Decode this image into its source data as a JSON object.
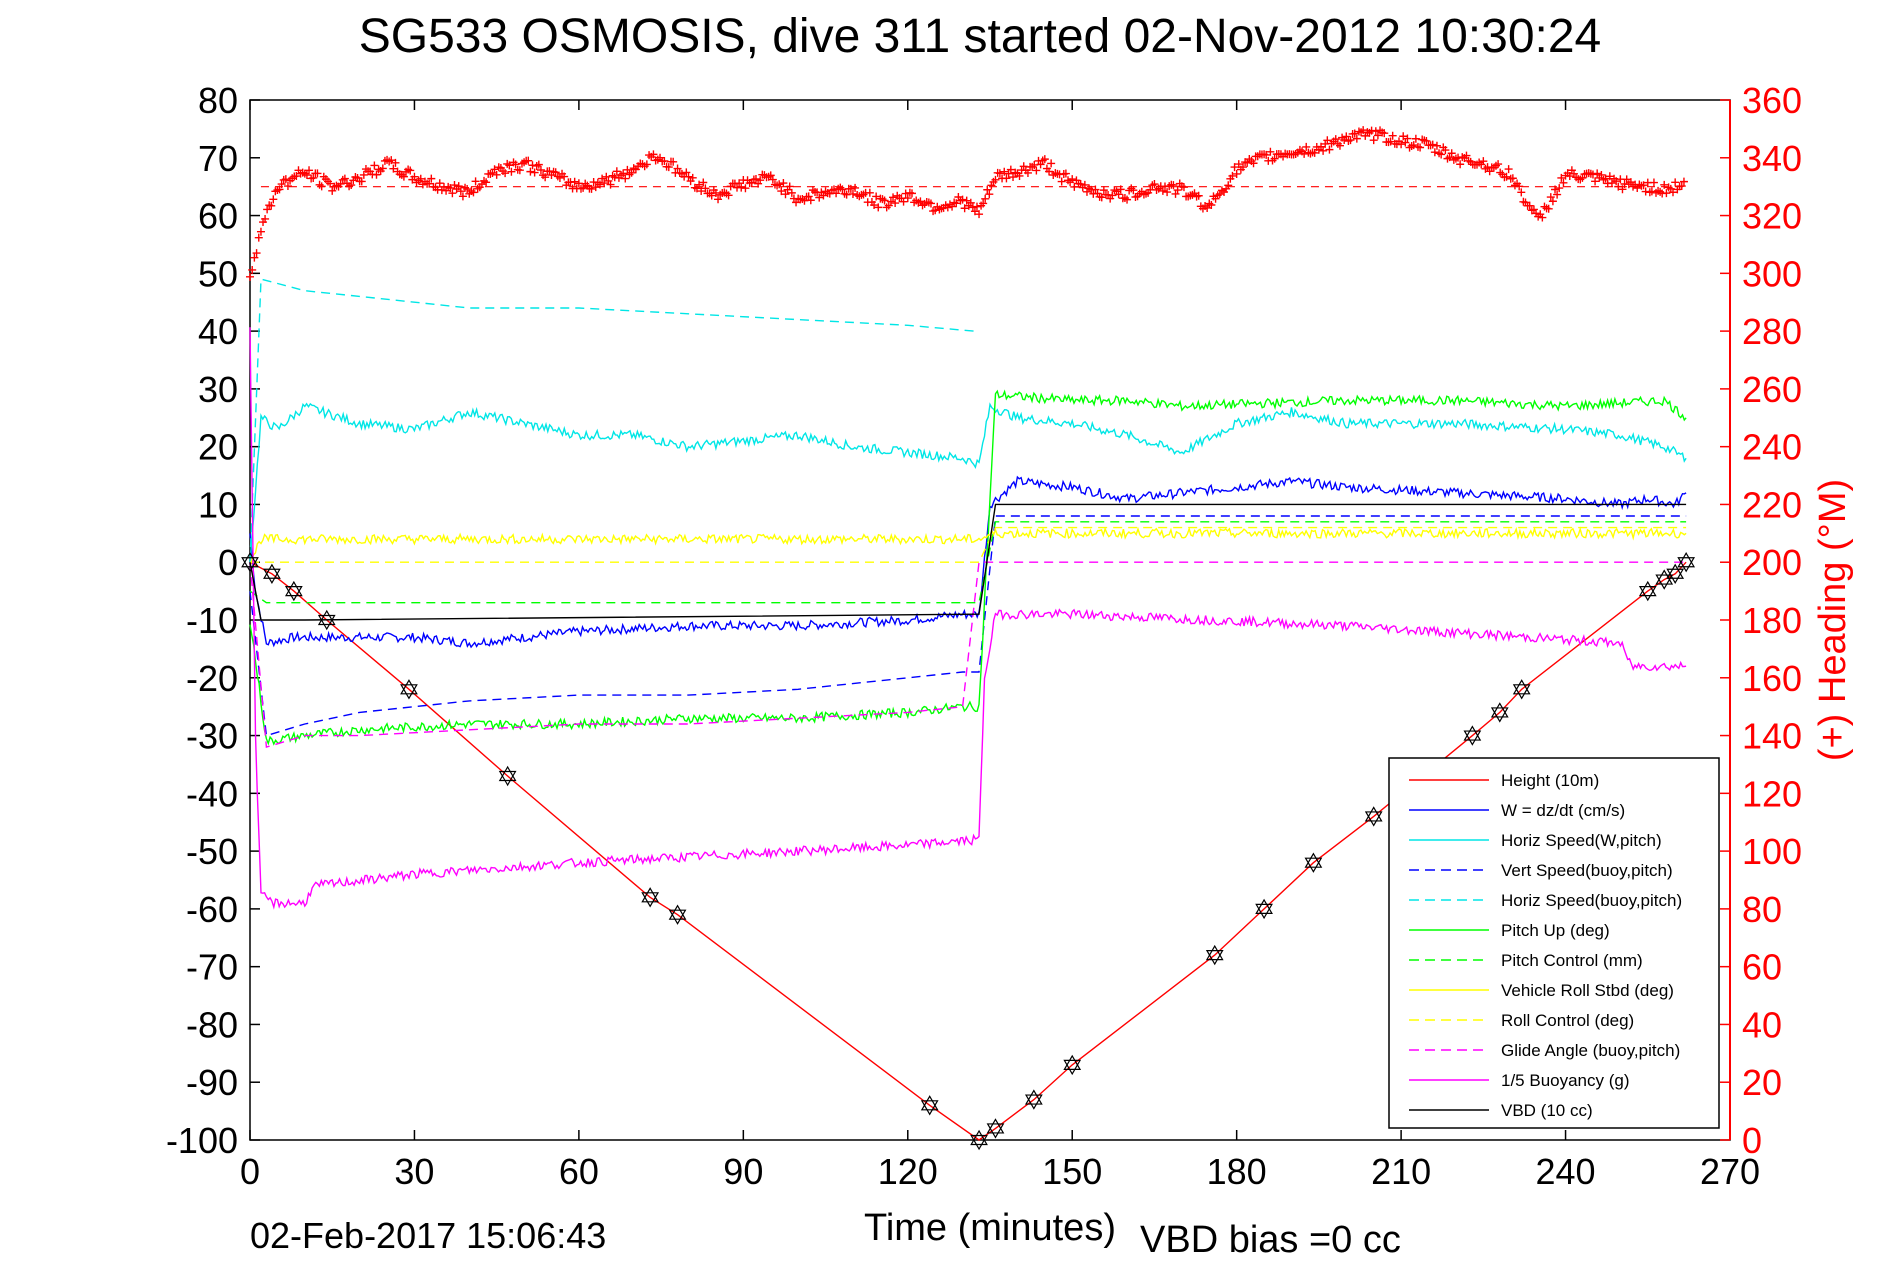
{
  "chart_data": {
    "type": "line",
    "title": "SG533 OSMOSIS, dive 311 started 02-Nov-2012 10:30:24",
    "xlabel": "Time (minutes)",
    "ylabel_right": "(+) Heading (°M)",
    "xlim": [
      0,
      270
    ],
    "ylim_left": [
      -100,
      80
    ],
    "ylim_right": [
      0,
      360
    ],
    "x_ticks": [
      "0",
      "30",
      "60",
      "90",
      "120",
      "150",
      "180",
      "210",
      "240",
      "270"
    ],
    "y_left_ticks": [
      "80",
      "70",
      "60",
      "50",
      "40",
      "30",
      "20",
      "10",
      "0",
      "-10",
      "-20",
      "-30",
      "-40",
      "-50",
      "-60",
      "-70",
      "-80",
      "-90",
      "-100"
    ],
    "y_right_ticks": [
      "360",
      "340",
      "320",
      "300",
      "280",
      "260",
      "240",
      "220",
      "200",
      "180",
      "160",
      "140",
      "120",
      "100",
      "80",
      "60",
      "40",
      "20",
      "0"
    ],
    "footer_date": "02-Feb-2017 15:06:43",
    "footer_bias": "VBD bias =0 cc",
    "heading_target": 330,
    "legend_position": "lower-right",
    "series": [
      {
        "name": "Height (10m)",
        "color": "#ff0000",
        "dash": "solid",
        "x": [
          0,
          4,
          8,
          14,
          29,
          47,
          73,
          78,
          124,
          133,
          136,
          143,
          150,
          176,
          185,
          194,
          205,
          223,
          228,
          232,
          255,
          258,
          260,
          262
        ],
        "y": [
          0,
          -2,
          -5,
          -10,
          -22,
          -37,
          -58,
          -61,
          -94,
          -100,
          -98,
          -93,
          -87,
          -68,
          -60,
          -52,
          -44,
          -30,
          -26,
          -22,
          -5,
          -3,
          -2,
          0
        ]
      },
      {
        "name": "W = dz/dt (cm/s)",
        "color": "#0000ff",
        "dash": "solid",
        "x": [
          0,
          1,
          3,
          8,
          15,
          30,
          40,
          50,
          60,
          80,
          100,
          120,
          130,
          133,
          135,
          140,
          150,
          160,
          170,
          180,
          190,
          200,
          220,
          240,
          250,
          255,
          260,
          262
        ],
        "y": [
          5,
          -5,
          -14,
          -13,
          -13,
          -13,
          -14,
          -13,
          -12,
          -11,
          -11,
          -10,
          -9,
          -9,
          10,
          14,
          13,
          11,
          12,
          13,
          14,
          13,
          12,
          11,
          10,
          11,
          10,
          12
        ]
      },
      {
        "name": "Horiz Speed(W,pitch)",
        "color": "#00e6e6",
        "dash": "solid",
        "x": [
          0,
          2,
          5,
          10,
          20,
          30,
          40,
          50,
          60,
          70,
          80,
          90,
          100,
          110,
          120,
          130,
          133,
          135,
          140,
          150,
          160,
          170,
          180,
          190,
          200,
          220,
          240,
          250,
          258,
          262
        ],
        "y": [
          0,
          25,
          23,
          27,
          24,
          23,
          26,
          24,
          22,
          22,
          20,
          21,
          22,
          20,
          19,
          18,
          17,
          27,
          25,
          24,
          22,
          19,
          24,
          26,
          24,
          24,
          23,
          22,
          20,
          18
        ]
      },
      {
        "name": "Vert Speed(buoy,pitch)",
        "color": "#0000ff",
        "dash": "dashed",
        "x": [
          0,
          3,
          10,
          20,
          40,
          60,
          80,
          100,
          120,
          130,
          133,
          136,
          262
        ],
        "y": [
          -5,
          -30,
          -28,
          -26,
          -24,
          -23,
          -23,
          -22,
          -20,
          -19,
          -19,
          8,
          8
        ]
      },
      {
        "name": "Horiz Speed(buoy,pitch)",
        "color": "#00e6e6",
        "dash": "dashed",
        "x": [
          0,
          2,
          10,
          20,
          40,
          60,
          80,
          100,
          120,
          132,
          133
        ],
        "y": [
          0,
          49,
          47,
          46,
          44,
          44,
          43,
          42,
          41,
          40,
          40
        ]
      },
      {
        "name": "Pitch Up (deg)",
        "color": "#00ff00",
        "dash": "solid",
        "x": [
          0,
          3,
          10,
          20,
          40,
          60,
          80,
          100,
          120,
          130,
          133,
          136,
          150,
          160,
          170,
          200,
          220,
          240,
          258,
          262
        ],
        "y": [
          -10,
          -31,
          -30,
          -29,
          -28,
          -28,
          -27,
          -27,
          -26,
          -25,
          -25,
          29,
          28,
          28,
          27,
          28,
          28,
          27,
          28,
          25
        ]
      },
      {
        "name": "Pitch Control (mm)",
        "color": "#00ff00",
        "dash": "dashed",
        "x": [
          0,
          3,
          10,
          50,
          100,
          132,
          133,
          136,
          262
        ],
        "y": [
          -5,
          -7,
          -7,
          -7,
          -7,
          -7,
          -7,
          7,
          7
        ]
      },
      {
        "name": "Vehicle Roll Stbd (deg)",
        "color": "#ffff00",
        "dash": "solid",
        "x": [
          0,
          2,
          10,
          30,
          60,
          90,
          120,
          132,
          133,
          136,
          150,
          200,
          240,
          262
        ],
        "y": [
          0,
          4,
          4,
          4,
          4,
          4,
          4,
          4,
          4,
          5,
          5,
          5,
          5,
          5
        ]
      },
      {
        "name": "Roll Control (deg)",
        "color": "#ffff00",
        "dash": "dashed",
        "x": [
          0,
          2,
          132,
          133,
          136,
          262
        ],
        "y": [
          0,
          0,
          0,
          0,
          6,
          6
        ]
      },
      {
        "name": "Glide Angle (buoy,pitch)",
        "color": "#ff00ff",
        "dash": "dashed",
        "x": [
          0,
          3,
          10,
          20,
          40,
          60,
          80,
          100,
          120,
          130,
          133,
          136,
          262
        ],
        "y": [
          0,
          -32,
          -30,
          -30,
          -29,
          -28,
          -28,
          -27,
          -26,
          -25,
          0,
          0,
          0
        ]
      },
      {
        "name": "1/5 Buoyancy (g)",
        "color": "#ff00ff",
        "dash": "solid",
        "x": [
          0,
          1,
          2,
          3,
          4,
          5,
          10,
          11,
          12,
          30,
          60,
          100,
          120,
          133,
          134,
          136,
          150,
          200,
          250,
          252,
          262
        ],
        "y": [
          40,
          -30,
          -58,
          -58,
          -59,
          -59,
          -59,
          -57,
          -56,
          -54,
          -52,
          -50,
          -49,
          -48,
          -20,
          -9,
          -9,
          -11,
          -14,
          -18,
          -18
        ]
      },
      {
        "name": "VBD (10 cc)",
        "color": "#000000",
        "dash": "solid",
        "x": [
          0,
          2,
          10,
          132,
          133,
          136,
          262
        ],
        "y": [
          0,
          -10,
          -10,
          -9,
          -9,
          10,
          10
        ]
      }
    ],
    "heading_series": {
      "color": "#ff0000",
      "marker": "+",
      "x": [
        0,
        2,
        5,
        10,
        15,
        20,
        25,
        30,
        35,
        40,
        45,
        50,
        55,
        60,
        65,
        70,
        74,
        80,
        85,
        90,
        95,
        100,
        105,
        110,
        115,
        120,
        125,
        130,
        133,
        136,
        140,
        145,
        150,
        155,
        160,
        165,
        170,
        175,
        180,
        185,
        190,
        195,
        200,
        205,
        210,
        215,
        220,
        225,
        230,
        235,
        240,
        245,
        250,
        255,
        258,
        262
      ],
      "y": [
        300,
        315,
        330,
        335,
        330,
        333,
        338,
        333,
        330,
        328,
        336,
        338,
        334,
        330,
        332,
        336,
        341,
        333,
        327,
        331,
        333,
        326,
        328,
        329,
        324,
        327,
        323,
        325,
        321,
        333,
        335,
        338,
        331,
        328,
        327,
        330,
        329,
        323,
        336,
        340,
        342,
        343,
        347,
        348,
        346,
        344,
        340,
        338,
        334,
        318,
        334,
        333,
        331,
        330,
        329,
        331
      ]
    },
    "markers": {
      "symbol": "hexagram",
      "x": [
        0,
        4,
        8,
        14,
        29,
        47,
        73,
        78,
        124,
        133,
        136,
        143,
        150,
        176,
        185,
        194,
        205,
        223,
        228,
        232,
        255,
        258,
        260,
        262
      ],
      "y": [
        0,
        -2,
        -5,
        -10,
        -22,
        -37,
        -58,
        -61,
        -94,
        -100,
        -98,
        -93,
        -87,
        -68,
        -60,
        -52,
        -44,
        -30,
        -26,
        -22,
        -5,
        -3,
        -2,
        0
      ]
    }
  }
}
